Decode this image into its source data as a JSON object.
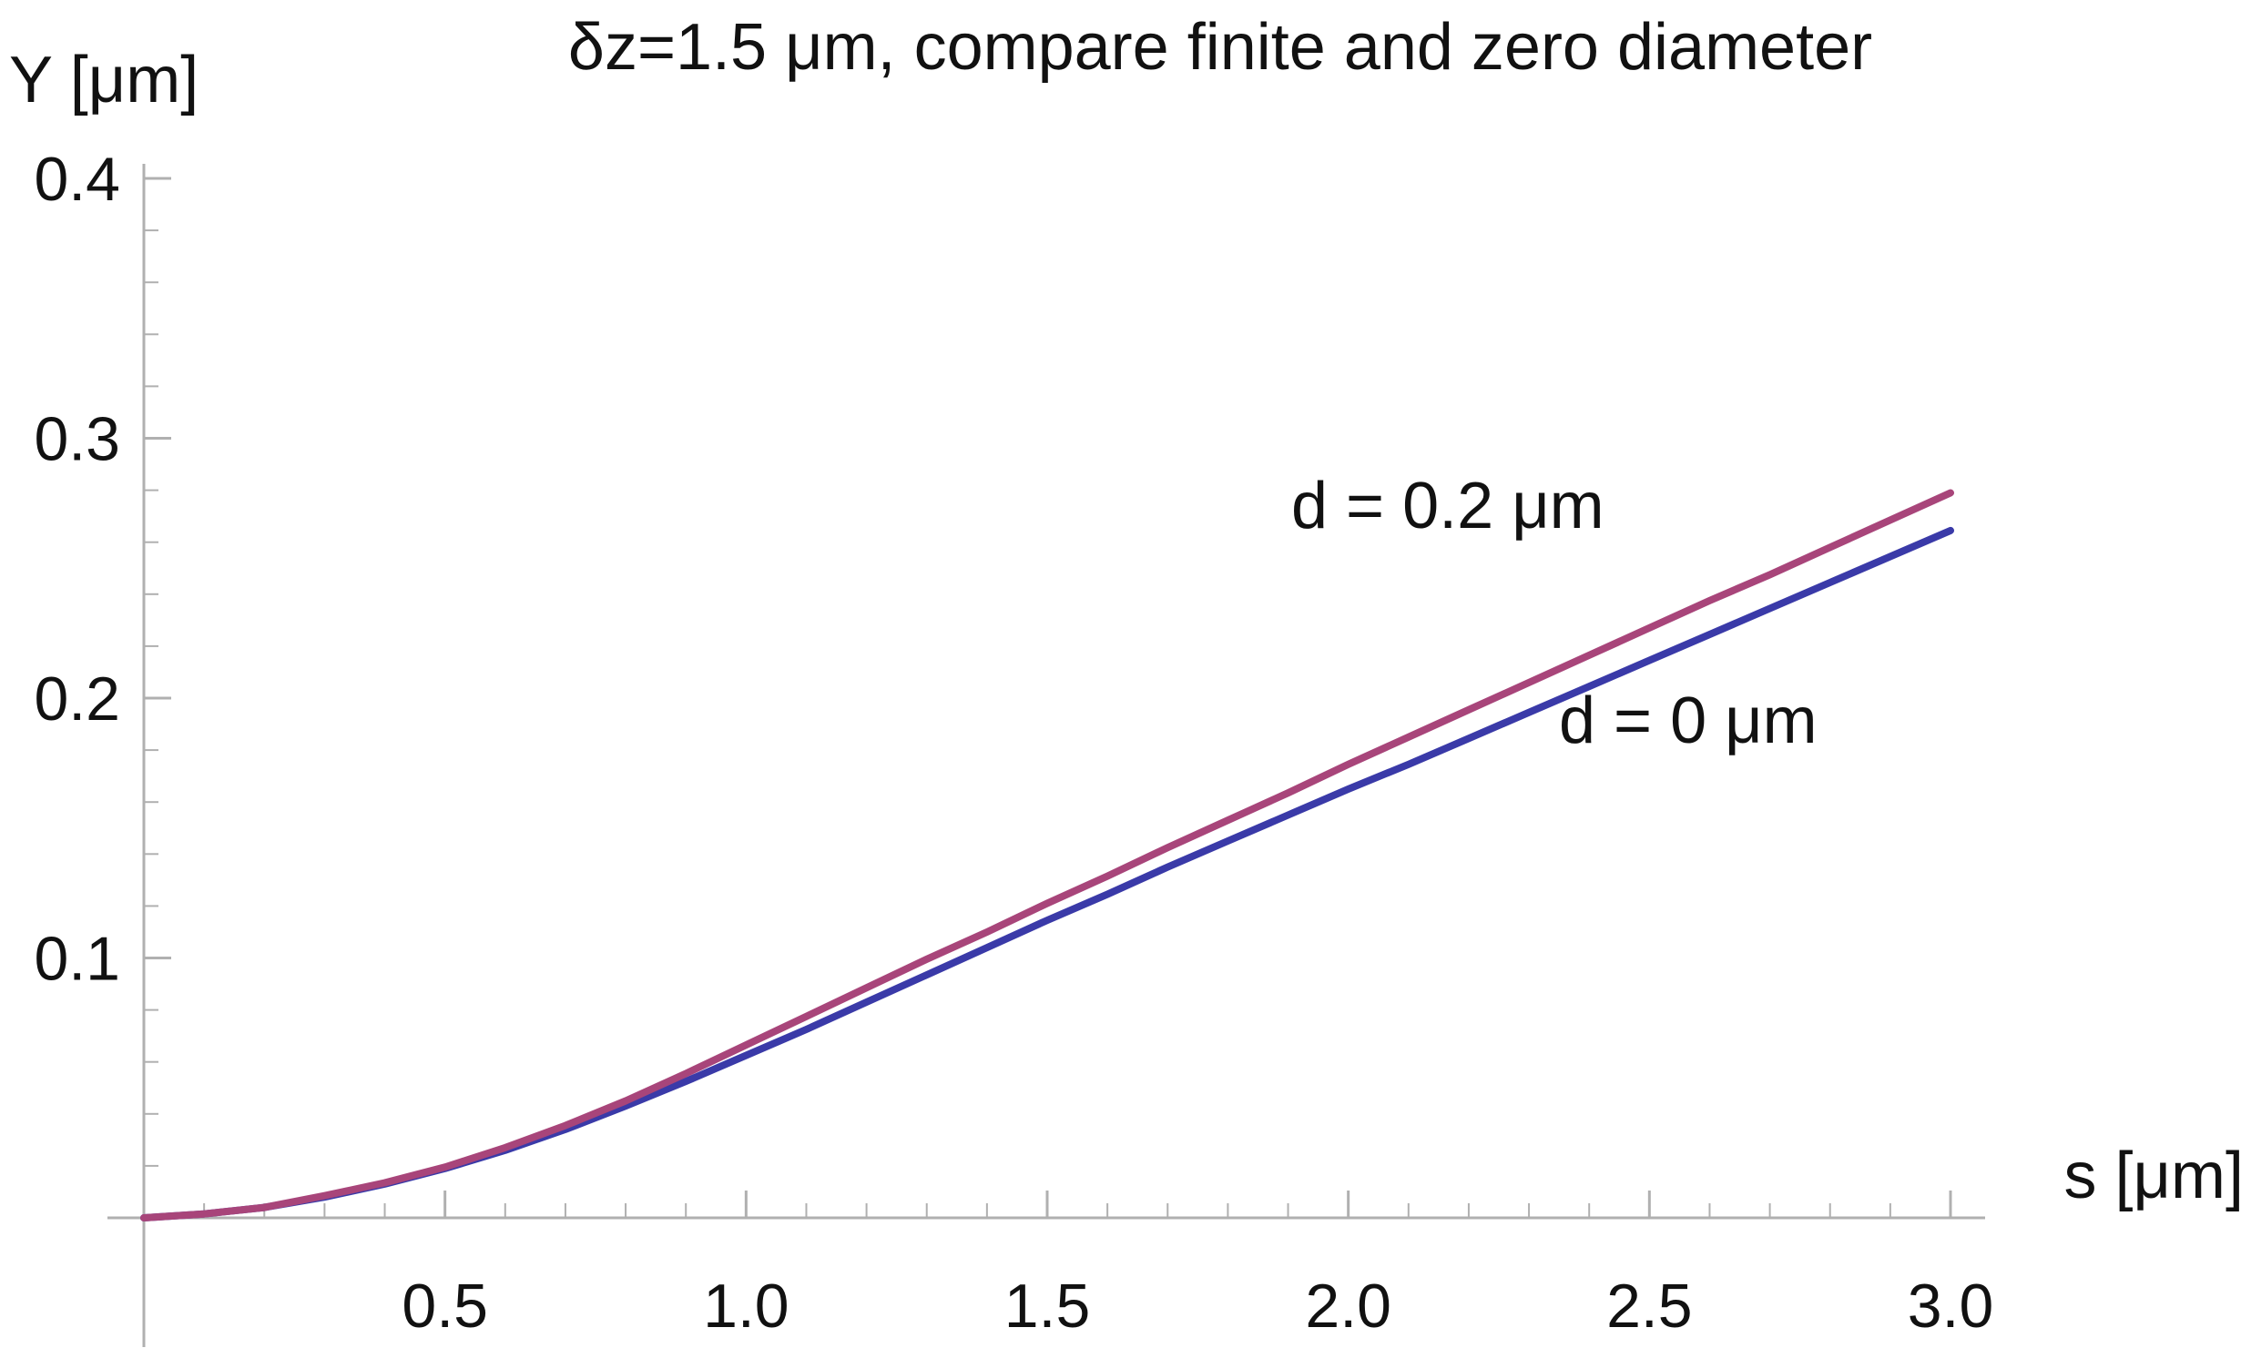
{
  "chart_data": {
    "type": "line",
    "title": "δz=1.5 μm, compare finite and zero diameter",
    "xlabel": "s [μm]",
    "ylabel": "Y [μm]",
    "xlim": [
      0,
      3.0
    ],
    "ylim": [
      0,
      0.4
    ],
    "x_ticks": [
      "0.5",
      "1.0",
      "1.5",
      "2.0",
      "2.5",
      "3.0"
    ],
    "y_ticks": [
      "0.1",
      "0.2",
      "0.3",
      "0.4"
    ],
    "grid": false,
    "series": [
      {
        "name": "d = 0.2 μm",
        "color": "#a8457a",
        "x": [
          0,
          0.1,
          0.2,
          0.3,
          0.4,
          0.5,
          0.6,
          0.7,
          0.8,
          0.9,
          1.0,
          1.1,
          1.2,
          1.3,
          1.4,
          1.5,
          1.6,
          1.7,
          1.8,
          1.9,
          2.0,
          2.1,
          2.2,
          2.3,
          2.4,
          2.5,
          2.6,
          2.7,
          2.8,
          2.9,
          3.0
        ],
        "y": [
          0,
          0.0015,
          0.004,
          0.0085,
          0.0135,
          0.0195,
          0.027,
          0.0355,
          0.045,
          0.0555,
          0.0665,
          0.0775,
          0.0885,
          0.0995,
          0.11,
          0.121,
          0.1315,
          0.1425,
          0.153,
          0.1635,
          0.1745,
          0.185,
          0.1955,
          0.206,
          0.2165,
          0.227,
          0.2375,
          0.2475,
          0.258,
          0.2685,
          0.279
        ]
      },
      {
        "name": "d = 0 μm",
        "color": "#3a3aa8",
        "x": [
          0,
          0.1,
          0.2,
          0.3,
          0.4,
          0.5,
          0.6,
          0.7,
          0.8,
          0.9,
          1.0,
          1.1,
          1.2,
          1.3,
          1.4,
          1.5,
          1.6,
          1.7,
          1.8,
          1.9,
          2.0,
          2.1,
          2.2,
          2.3,
          2.4,
          2.5,
          2.6,
          2.7,
          2.8,
          2.9,
          3.0
        ],
        "y": [
          0,
          0.0015,
          0.004,
          0.008,
          0.013,
          0.019,
          0.026,
          0.034,
          0.043,
          0.0525,
          0.0625,
          0.0725,
          0.083,
          0.0935,
          0.104,
          0.1145,
          0.1245,
          0.135,
          0.145,
          0.155,
          0.165,
          0.1745,
          0.1845,
          0.1945,
          0.2045,
          0.2145,
          0.2245,
          0.2345,
          0.2445,
          0.2545,
          0.2645
        ]
      }
    ]
  },
  "colors": {
    "axis": "#b0b0b0",
    "text": "#111111"
  }
}
